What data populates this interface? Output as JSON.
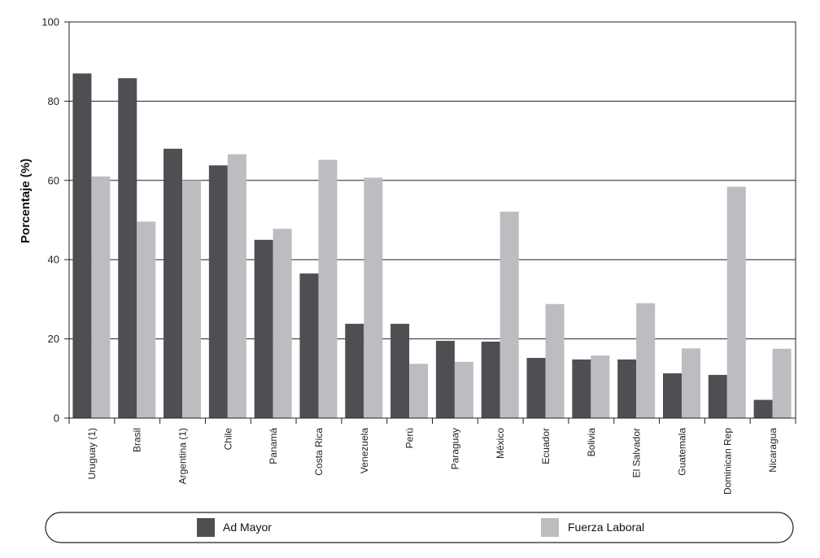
{
  "chart_data": {
    "type": "bar",
    "title": "",
    "xlabel": "",
    "ylabel": "Porcentaje (%)",
    "ylim": [
      0,
      100
    ],
    "yticks": [
      0,
      20,
      40,
      60,
      80,
      100
    ],
    "grid": true,
    "legend_position": "bottom",
    "categories": [
      "Uruguay (1)",
      "Brasil",
      "Argentina (1)",
      "Chile",
      "Panamá",
      "Costa Rica",
      "Venezuela",
      "Perú",
      "Paraguay",
      "México",
      "Ecuador",
      "Bolivia",
      "El Salvador",
      "Guatemala",
      "Dominican Rep",
      "Nicaragua"
    ],
    "series": [
      {
        "name": "Ad Mayor",
        "color": "#4d4f53",
        "values": [
          87,
          85.8,
          68,
          63.8,
          45,
          36.5,
          23.8,
          23.8,
          19.5,
          19.3,
          15.2,
          14.8,
          14.8,
          11.3,
          10.9,
          4.6
        ]
      },
      {
        "name": "Fuerza Laboral",
        "color": "#bcbdc0",
        "values": [
          61,
          49.6,
          60,
          66.6,
          47.8,
          65.2,
          60.7,
          13.7,
          14.2,
          52.1,
          28.8,
          15.8,
          29.0,
          17.6,
          58.4,
          17.5
        ]
      }
    ]
  }
}
